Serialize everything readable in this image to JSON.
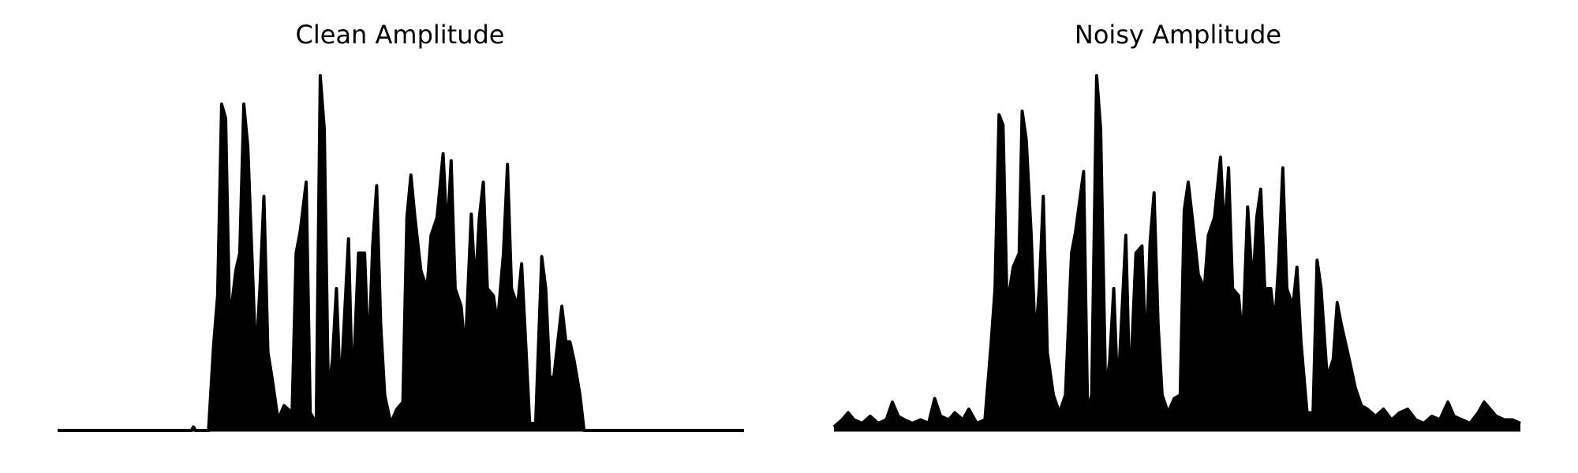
{
  "chart_data": [
    {
      "type": "area",
      "title": "Clean Amplitude",
      "color": "#000000",
      "xlim": [
        0,
        682
      ],
      "ylim": [
        0,
        1
      ],
      "x": [
        0,
        60,
        120,
        133,
        135,
        137,
        150,
        155,
        159,
        163,
        167,
        171,
        177,
        181,
        185,
        189,
        193,
        197,
        201,
        205,
        209,
        213,
        219,
        225,
        233,
        237,
        241,
        247,
        251,
        257,
        261,
        265,
        269,
        273,
        277,
        281,
        289,
        293,
        299,
        305,
        309,
        313,
        317,
        321,
        325,
        331,
        337,
        343,
        347,
        351,
        355,
        361,
        367,
        371,
        377,
        383,
        387,
        391,
        395,
        401,
        405,
        411,
        415,
        419,
        423,
        427,
        433,
        437,
        443,
        447,
        451,
        457,
        461,
        465,
        469,
        475,
        481,
        485,
        489,
        493,
        497,
        501,
        505,
        509,
        513,
        519,
        523,
        560,
        620,
        682
      ],
      "values": [
        0,
        0,
        0,
        0,
        0.01,
        0,
        0,
        0.24,
        0.38,
        0.92,
        0.88,
        0.3,
        0.45,
        0.5,
        0.92,
        0.8,
        0.5,
        0.2,
        0.4,
        0.66,
        0.22,
        0.15,
        0.03,
        0.07,
        0.05,
        0.5,
        0.56,
        0.7,
        0.05,
        0.02,
        1.0,
        0.85,
        0.1,
        0.2,
        0.4,
        0.1,
        0.54,
        0.1,
        0.5,
        0.5,
        0.2,
        0.52,
        0.69,
        0.3,
        0.1,
        0.02,
        0.06,
        0.08,
        0.6,
        0.72,
        0.6,
        0.45,
        0.4,
        0.55,
        0.6,
        0.78,
        0.55,
        0.76,
        0.4,
        0.35,
        0.22,
        0.61,
        0.4,
        0.6,
        0.7,
        0.4,
        0.38,
        0.3,
        0.5,
        0.75,
        0.4,
        0.35,
        0.47,
        0.25,
        0.02,
        0.02,
        0.49,
        0.4,
        0.15,
        0.15,
        0.25,
        0.35,
        0.25,
        0.25,
        0.2,
        0.1,
        0,
        0,
        0,
        0
      ]
    },
    {
      "type": "area",
      "title": "Noisy Amplitude",
      "color": "#000000",
      "xlim": [
        0,
        682
      ],
      "ylim": [
        0,
        1
      ],
      "x": [
        0,
        8,
        14,
        20,
        28,
        36,
        44,
        52,
        58,
        64,
        70,
        78,
        86,
        94,
        100,
        106,
        114,
        120,
        128,
        134,
        142,
        150,
        156,
        160,
        164,
        168,
        172,
        178,
        184,
        187,
        191,
        196,
        200,
        204,
        208,
        212,
        218,
        224,
        230,
        236,
        240,
        248,
        252,
        256,
        261,
        265,
        270,
        274,
        278,
        282,
        290,
        294,
        300,
        306,
        310,
        314,
        318,
        322,
        326,
        332,
        338,
        344,
        348,
        352,
        356,
        362,
        368,
        372,
        378,
        384,
        388,
        392,
        396,
        402,
        406,
        411,
        416,
        420,
        424,
        428,
        434,
        438,
        442,
        446,
        450,
        456,
        460,
        464,
        470,
        476,
        480,
        484,
        490,
        496,
        500,
        504,
        508,
        512,
        518,
        524,
        530,
        538,
        546,
        554,
        562,
        570,
        578,
        586,
        594,
        602,
        610,
        616,
        624,
        632,
        640,
        646,
        652,
        658,
        666,
        674,
        682
      ],
      "values": [
        0.01,
        0.03,
        0.05,
        0.03,
        0.02,
        0.04,
        0.02,
        0.03,
        0.08,
        0.04,
        0.03,
        0.02,
        0.03,
        0.02,
        0.09,
        0.04,
        0.03,
        0.05,
        0.03,
        0.06,
        0.02,
        0.03,
        0.24,
        0.4,
        0.89,
        0.86,
        0.35,
        0.46,
        0.5,
        0.9,
        0.82,
        0.55,
        0.25,
        0.4,
        0.66,
        0.22,
        0.1,
        0.05,
        0.1,
        0.5,
        0.56,
        0.73,
        0.05,
        0.1,
        1.0,
        0.85,
        0.1,
        0.2,
        0.4,
        0.1,
        0.55,
        0.1,
        0.5,
        0.52,
        0.2,
        0.53,
        0.67,
        0.3,
        0.1,
        0.05,
        0.09,
        0.1,
        0.62,
        0.7,
        0.6,
        0.44,
        0.4,
        0.55,
        0.6,
        0.77,
        0.55,
        0.74,
        0.4,
        0.38,
        0.25,
        0.63,
        0.4,
        0.6,
        0.68,
        0.4,
        0.4,
        0.3,
        0.48,
        0.74,
        0.4,
        0.35,
        0.46,
        0.25,
        0.05,
        0.05,
        0.48,
        0.4,
        0.15,
        0.2,
        0.36,
        0.3,
        0.25,
        0.2,
        0.12,
        0.07,
        0.06,
        0.04,
        0.06,
        0.03,
        0.05,
        0.06,
        0.03,
        0.02,
        0.04,
        0.03,
        0.08,
        0.04,
        0.03,
        0.02,
        0.05,
        0.08,
        0.06,
        0.04,
        0.03,
        0.03,
        0.02
      ]
    }
  ]
}
